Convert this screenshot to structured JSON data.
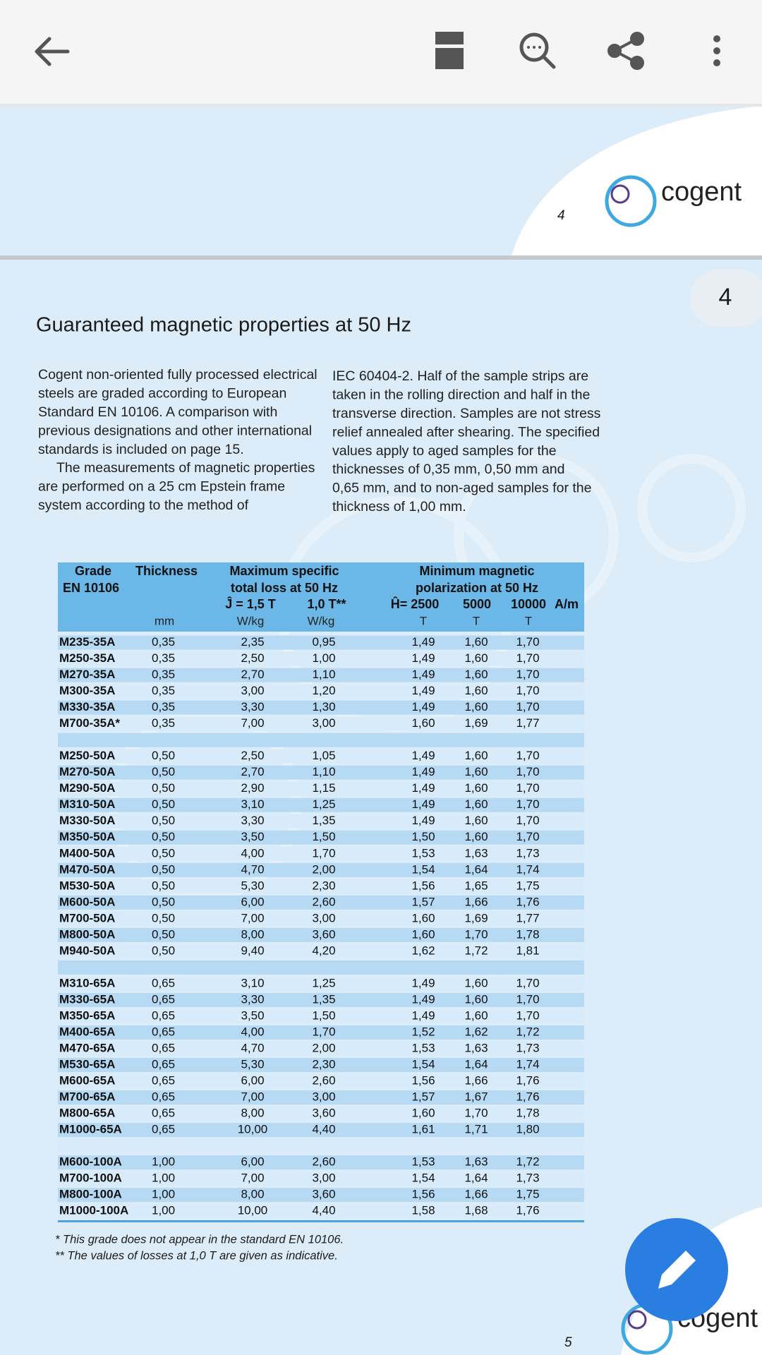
{
  "page4": {
    "number": "4",
    "logo": "cogent"
  },
  "badge": "4",
  "title": "Guaranteed magnetic properties at 50 Hz",
  "body": {
    "column1": [
      [
        "Cogent non-oriented fully processed electrical",
        "steels are graded according to  European",
        "Standard EN 10106. A comparison with",
        "previous designations and other international",
        "standards is included on page 15."
      ],
      [
        "The measurements of magnetic properties",
        "are performed on a 25 cm Epstein frame",
        "system according to the method of"
      ]
    ],
    "column2": [
      "IEC 60404-2. Half of the sample strips are",
      "taken in the rolling direction and half in the",
      "transverse direction. Samples are not stress",
      "relief annealed after shearing. The specified",
      "values apply to aged samples for the",
      "thicknesses of 0,35 mm, 0,50 mm and",
      "0,65 mm, and to non-aged samples for the",
      "thickness of 1,00 mm."
    ]
  },
  "table": {
    "header": {
      "grade": "Grade",
      "grade_std": "EN 10106",
      "thickness": "Thickness",
      "loss": "Maximum specific",
      "loss_sub": "total loss at 50 Hz",
      "loss_a": "Ĵ = 1,5 T",
      "loss_b": "1,0 T**",
      "pol": "Minimum magnetic",
      "pol_sub": "polarization at 50 Hz",
      "pol_a": "Ĥ= 2500",
      "pol_b": "5000",
      "pol_c": "10000",
      "pol_unit": "A/m",
      "units": [
        "mm",
        "W/kg",
        "W/kg",
        "T",
        "T",
        "T"
      ]
    },
    "groups": [
      {
        "rows": [
          [
            "M235-35A",
            "0,35",
            "2,35",
            "0,95",
            "1,49",
            "1,60",
            "1,70"
          ],
          [
            "M250-35A",
            "0,35",
            "2,50",
            "1,00",
            "1,49",
            "1,60",
            "1,70"
          ],
          [
            "M270-35A",
            "0,35",
            "2,70",
            "1,10",
            "1,49",
            "1,60",
            "1,70"
          ],
          [
            "M300-35A",
            "0,35",
            "3,00",
            "1,20",
            "1,49",
            "1,60",
            "1,70"
          ],
          [
            "M330-35A",
            "0,35",
            "3,30",
            "1,30",
            "1,49",
            "1,60",
            "1,70"
          ],
          [
            "M700-35A*",
            "0,35",
            "7,00",
            "3,00",
            "1,60",
            "1,69",
            "1,77"
          ]
        ]
      },
      {
        "rows": [
          [
            "M250-50A",
            "0,50",
            "2,50",
            "1,05",
            "1,49",
            "1,60",
            "1,70"
          ],
          [
            "M270-50A",
            "0,50",
            "2,70",
            "1,10",
            "1,49",
            "1,60",
            "1,70"
          ],
          [
            "M290-50A",
            "0,50",
            "2,90",
            "1,15",
            "1,49",
            "1,60",
            "1,70"
          ],
          [
            "M310-50A",
            "0,50",
            "3,10",
            "1,25",
            "1,49",
            "1,60",
            "1,70"
          ],
          [
            "M330-50A",
            "0,50",
            "3,30",
            "1,35",
            "1,49",
            "1,60",
            "1,70"
          ],
          [
            "M350-50A",
            "0,50",
            "3,50",
            "1,50",
            "1,50",
            "1,60",
            "1,70"
          ],
          [
            "M400-50A",
            "0,50",
            "4,00",
            "1,70",
            "1,53",
            "1,63",
            "1,73"
          ],
          [
            "M470-50A",
            "0,50",
            "4,70",
            "2,00",
            "1,54",
            "1,64",
            "1,74"
          ],
          [
            "M530-50A",
            "0,50",
            "5,30",
            "2,30",
            "1,56",
            "1,65",
            "1,75"
          ],
          [
            "M600-50A",
            "0,50",
            "6,00",
            "2,60",
            "1,57",
            "1,66",
            "1,76"
          ],
          [
            "M700-50A",
            "0,50",
            "7,00",
            "3,00",
            "1,60",
            "1,69",
            "1,77"
          ],
          [
            "M800-50A",
            "0,50",
            "8,00",
            "3,60",
            "1,60",
            "1,70",
            "1,78"
          ],
          [
            "M940-50A",
            "0,50",
            "9,40",
            "4,20",
            "1,62",
            "1,72",
            "1,81"
          ]
        ]
      },
      {
        "rows": [
          [
            "M310-65A",
            "0,65",
            "3,10",
            "1,25",
            "1,49",
            "1,60",
            "1,70"
          ],
          [
            "M330-65A",
            "0,65",
            "3,30",
            "1,35",
            "1,49",
            "1,60",
            "1,70"
          ],
          [
            "M350-65A",
            "0,65",
            "3,50",
            "1,50",
            "1,49",
            "1,60",
            "1,70"
          ],
          [
            "M400-65A",
            "0,65",
            "4,00",
            "1,70",
            "1,52",
            "1,62",
            "1,72"
          ],
          [
            "M470-65A",
            "0,65",
            "4,70",
            "2,00",
            "1,53",
            "1,63",
            "1,73"
          ],
          [
            "M530-65A",
            "0,65",
            "5,30",
            "2,30",
            "1,54",
            "1,64",
            "1,74"
          ],
          [
            "M600-65A",
            "0,65",
            "6,00",
            "2,60",
            "1,56",
            "1,66",
            "1,76"
          ],
          [
            "M700-65A",
            "0,65",
            "7,00",
            "3,00",
            "1,57",
            "1,67",
            "1,76"
          ],
          [
            "M800-65A",
            "0,65",
            "8,00",
            "3,60",
            "1,60",
            "1,70",
            "1,78"
          ],
          [
            "M1000-65A",
            "0,65",
            "10,00",
            "4,40",
            "1,61",
            "1,71",
            "1,80"
          ]
        ]
      },
      {
        "rows": [
          [
            "M600-100A",
            "1,00",
            "6,00",
            "2,60",
            "1,53",
            "1,63",
            "1,72"
          ],
          [
            "M700-100A",
            "1,00",
            "7,00",
            "3,00",
            "1,54",
            "1,64",
            "1,73"
          ],
          [
            "M800-100A",
            "1,00",
            "8,00",
            "3,60",
            "1,56",
            "1,66",
            "1,75"
          ],
          [
            "M1000-100A",
            "1,00",
            "10,00",
            "4,40",
            "1,58",
            "1,68",
            "1,76"
          ]
        ]
      }
    ],
    "footnotes": [
      "* This grade does not appear in the standard EN 10106.",
      "** The values of losses at 1,0 T are given as indicative."
    ]
  },
  "page5": {
    "number": "5",
    "logo": "cogent"
  }
}
